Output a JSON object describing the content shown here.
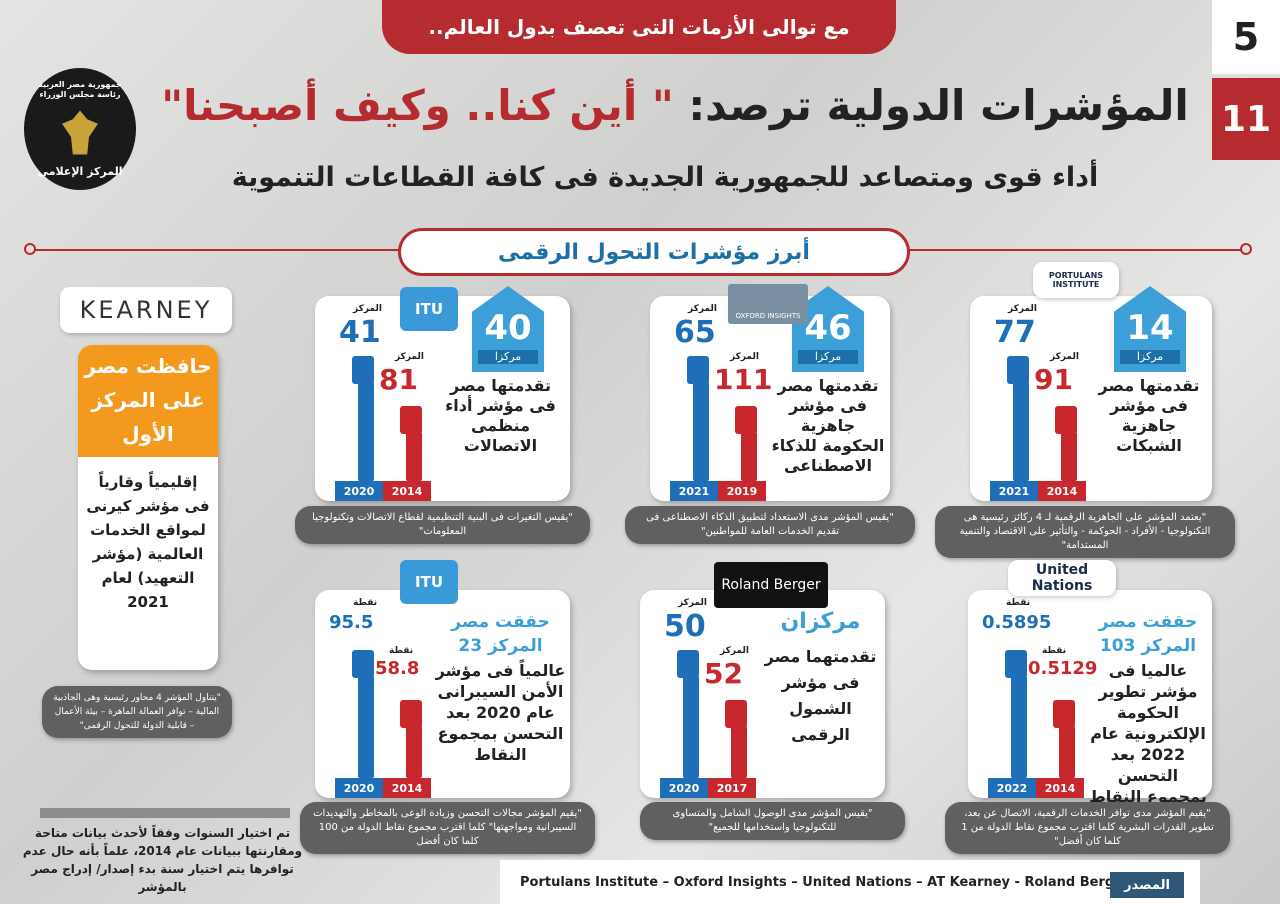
{
  "header": {
    "banner": "مع توالى الأزمات التى تعصف بدول العالم..",
    "page_number": "5",
    "total_pages": "11",
    "title_prefix": "المؤشرات الدولية ترصد:",
    "title_quote": "\" أين كنا.. وكيف أصبحنا\"",
    "subtitle": "أداء قوى ومتصاعد للجمهورية الجديدة فى كافة القطاعات التنموية",
    "logo_top": "جمهورية مصر العربية رئاسة مجلس الوزراء",
    "logo_bottom": "المركز الإعلامى"
  },
  "section_title": "أبرز مؤشرات التحول الرقمى",
  "rank_label": "المركز",
  "points_label": "نقطة",
  "places_label": "مركزا",
  "colors": {
    "accent_red": "#b52b2f",
    "blue": "#1f6fb8",
    "orange": "#f39a1e"
  },
  "cards": [
    {
      "brand": "PORTULANS INSTITUTE",
      "rank_new": "77",
      "rank_old": "91",
      "year_new": "2021",
      "year_old": "2014",
      "improvement": "14",
      "text": "تقدمتها مصر فى مؤشر جاهزية الشبكات",
      "note": "\"يعتمد المؤشر على الجاهزية الرقمية لـ 4 ركائز رئيسية هى التكنولوجيا - الأفراد - الحوكمة - والتأثير على الاقتصاد والتنمية المستدامة\""
    },
    {
      "brand": "OXFORD INSIGHTS",
      "rank_new": "65",
      "rank_old": "111",
      "year_new": "2021",
      "year_old": "2019",
      "improvement": "46",
      "text": "تقدمتها مصر فى مؤشر جاهزية الحكومة للذكاء الاصطناعى",
      "note": "\"يقيس المؤشر مدى الاستعداد لتطبيق الذكاء الاصطناعى فى تقديم الخدمات العامة للمواطنين\""
    },
    {
      "brand": "ITU",
      "rank_new": "41",
      "rank_old": "81",
      "year_new": "2020",
      "year_old": "2014",
      "improvement": "40",
      "text": "تقدمتها مصر فى مؤشر أداء منظمى الاتصالات",
      "note": "\"يقيس التغيرات فى البنية التنظيمية لقطاع الاتصالات وتكنولوجيا المعلومات\""
    },
    {
      "brand": "United Nations",
      "rank_new": "0.5895",
      "rank_old": "0.5129",
      "year_new": "2022",
      "year_old": "2014",
      "headline": "حققت مصر",
      "rank_line": "المركز 103",
      "text": "عالميا فى مؤشر تطوير الحكومة الإلكترونية عام 2022 بعد التحسن بمجموع النقاط",
      "note": "\"يقيم المؤشر مدى توافر الخدمات الرقمية، الاتصال عن بعد، تطوير القدرات البشرية كلما اقترب مجموع نقاط الدولة من 1 كلما كان أفضل\""
    },
    {
      "brand": "Roland Berger",
      "rank_new": "50",
      "rank_old": "52",
      "year_new": "2020",
      "year_old": "2017",
      "headline": "مركزان",
      "text": "تقدمتهما مصر فى مؤشر الشمول الرقمى",
      "note": "\"يقيس المؤشر مدى الوصول الشامل والمتساوى للتكنولوجيا واستخدامها للجميع\""
    },
    {
      "brand": "ITU",
      "rank_new": "95.5",
      "rank_old": "58.8",
      "year_new": "2020",
      "year_old": "2014",
      "headline": "حققت مصر",
      "rank_line": "المركز 23",
      "text": "عالمياً فى مؤشر الأمن السيبرانى عام 2020 بعد التحسن بمجموع النقاط",
      "note": "\"يقيم المؤشر مجالات التحسن وزيادة الوعى بالمخاطر والتهديدات السيبرانية ومواجهتها\" كلما اقترب مجموع نقاط الدولة من 100 كلما كان أفضل"
    }
  ],
  "kearney": {
    "brand": "KEARNEY",
    "headline": "حافظت مصر على المركز الأول",
    "text": "إقليمياً وقارياً فى مؤشر كيرنى لمواقع الخدمات العالمية (مؤشر التعهيد) لعام 2021",
    "note": "\"يتناول المؤشر 4 محاور رئيسية وهى الجاذبية المالية – توافر العمالة الماهرة – بيئة الأعمال – قابلية الدولة للتحول الرقمى\""
  },
  "footnote": "تم اختيار السنوات وفقاً لأحدث بيانات متاحة ومقارنتها ببيانات عام 2014، علماً بأنه حال عدم توافرها يتم اختيار سنة بدء إصدار/ إدراج مصر بالمؤشر",
  "source": {
    "label": "المصدر",
    "text": "Portulans Institute – Oxford Insights – United Nations – AT Kearney - Roland Berger - ITU"
  }
}
